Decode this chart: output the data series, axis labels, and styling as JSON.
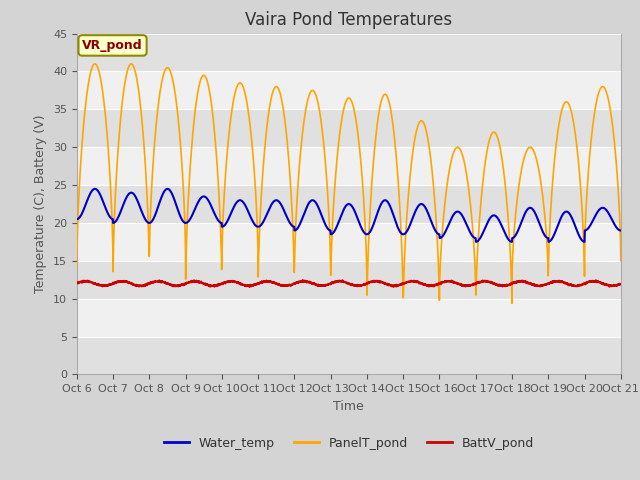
{
  "title": "Vaira Pond Temperatures",
  "xlabel": "Time",
  "ylabel": "Temperature (C), Battery (V)",
  "annotation": "VR_pond",
  "ylim": [
    0,
    45
  ],
  "xlim": [
    0,
    15
  ],
  "x_tick_labels": [
    "Oct 6",
    "Oct 7",
    "Oct 8",
    "Oct 9",
    "Oct 10",
    "Oct 11",
    "Oct 12",
    "Oct 13",
    "Oct 14",
    "Oct 15",
    "Oct 16",
    "Oct 17",
    "Oct 18",
    "Oct 19",
    "Oct 20",
    "Oct 21"
  ],
  "y_ticks": [
    0,
    5,
    10,
    15,
    20,
    25,
    30,
    35,
    40,
    45
  ],
  "figure_bg_color": "#d4d4d4",
  "plot_bg_color": "#f0f0f0",
  "band_color": "#e0e0e0",
  "water_temp_color": "#0000cc",
  "panel_temp_color": "#ffa500",
  "batt_v_color": "#cc0000",
  "legend_labels": [
    "Water_temp",
    "PanelT_pond",
    "BattV_pond"
  ],
  "title_fontsize": 12,
  "axis_label_fontsize": 9,
  "tick_fontsize": 8,
  "panel_peaks": [
    41,
    41,
    40.5,
    39.5,
    38.5,
    38,
    37.5,
    36.5,
    37,
    33.5,
    30,
    32,
    30,
    36,
    38
  ],
  "panel_mins": [
    14,
    13,
    15,
    11.5,
    14.5,
    11.5,
    13,
    11.5,
    8.5,
    8.5,
    10.5,
    8.5,
    12.5,
    12.5,
    15
  ],
  "water_peaks": [
    24.5,
    24,
    24.5,
    23.5,
    23,
    23,
    23,
    22.5,
    23,
    22.5,
    21.5,
    21,
    22,
    21.5,
    22
  ],
  "water_mins": [
    20.5,
    20,
    20,
    20,
    19.5,
    19.5,
    19,
    18.5,
    18.5,
    18.5,
    18,
    17.5,
    18,
    17.5,
    19
  ],
  "batt_mean": 12.0,
  "batt_amp": 0.3
}
